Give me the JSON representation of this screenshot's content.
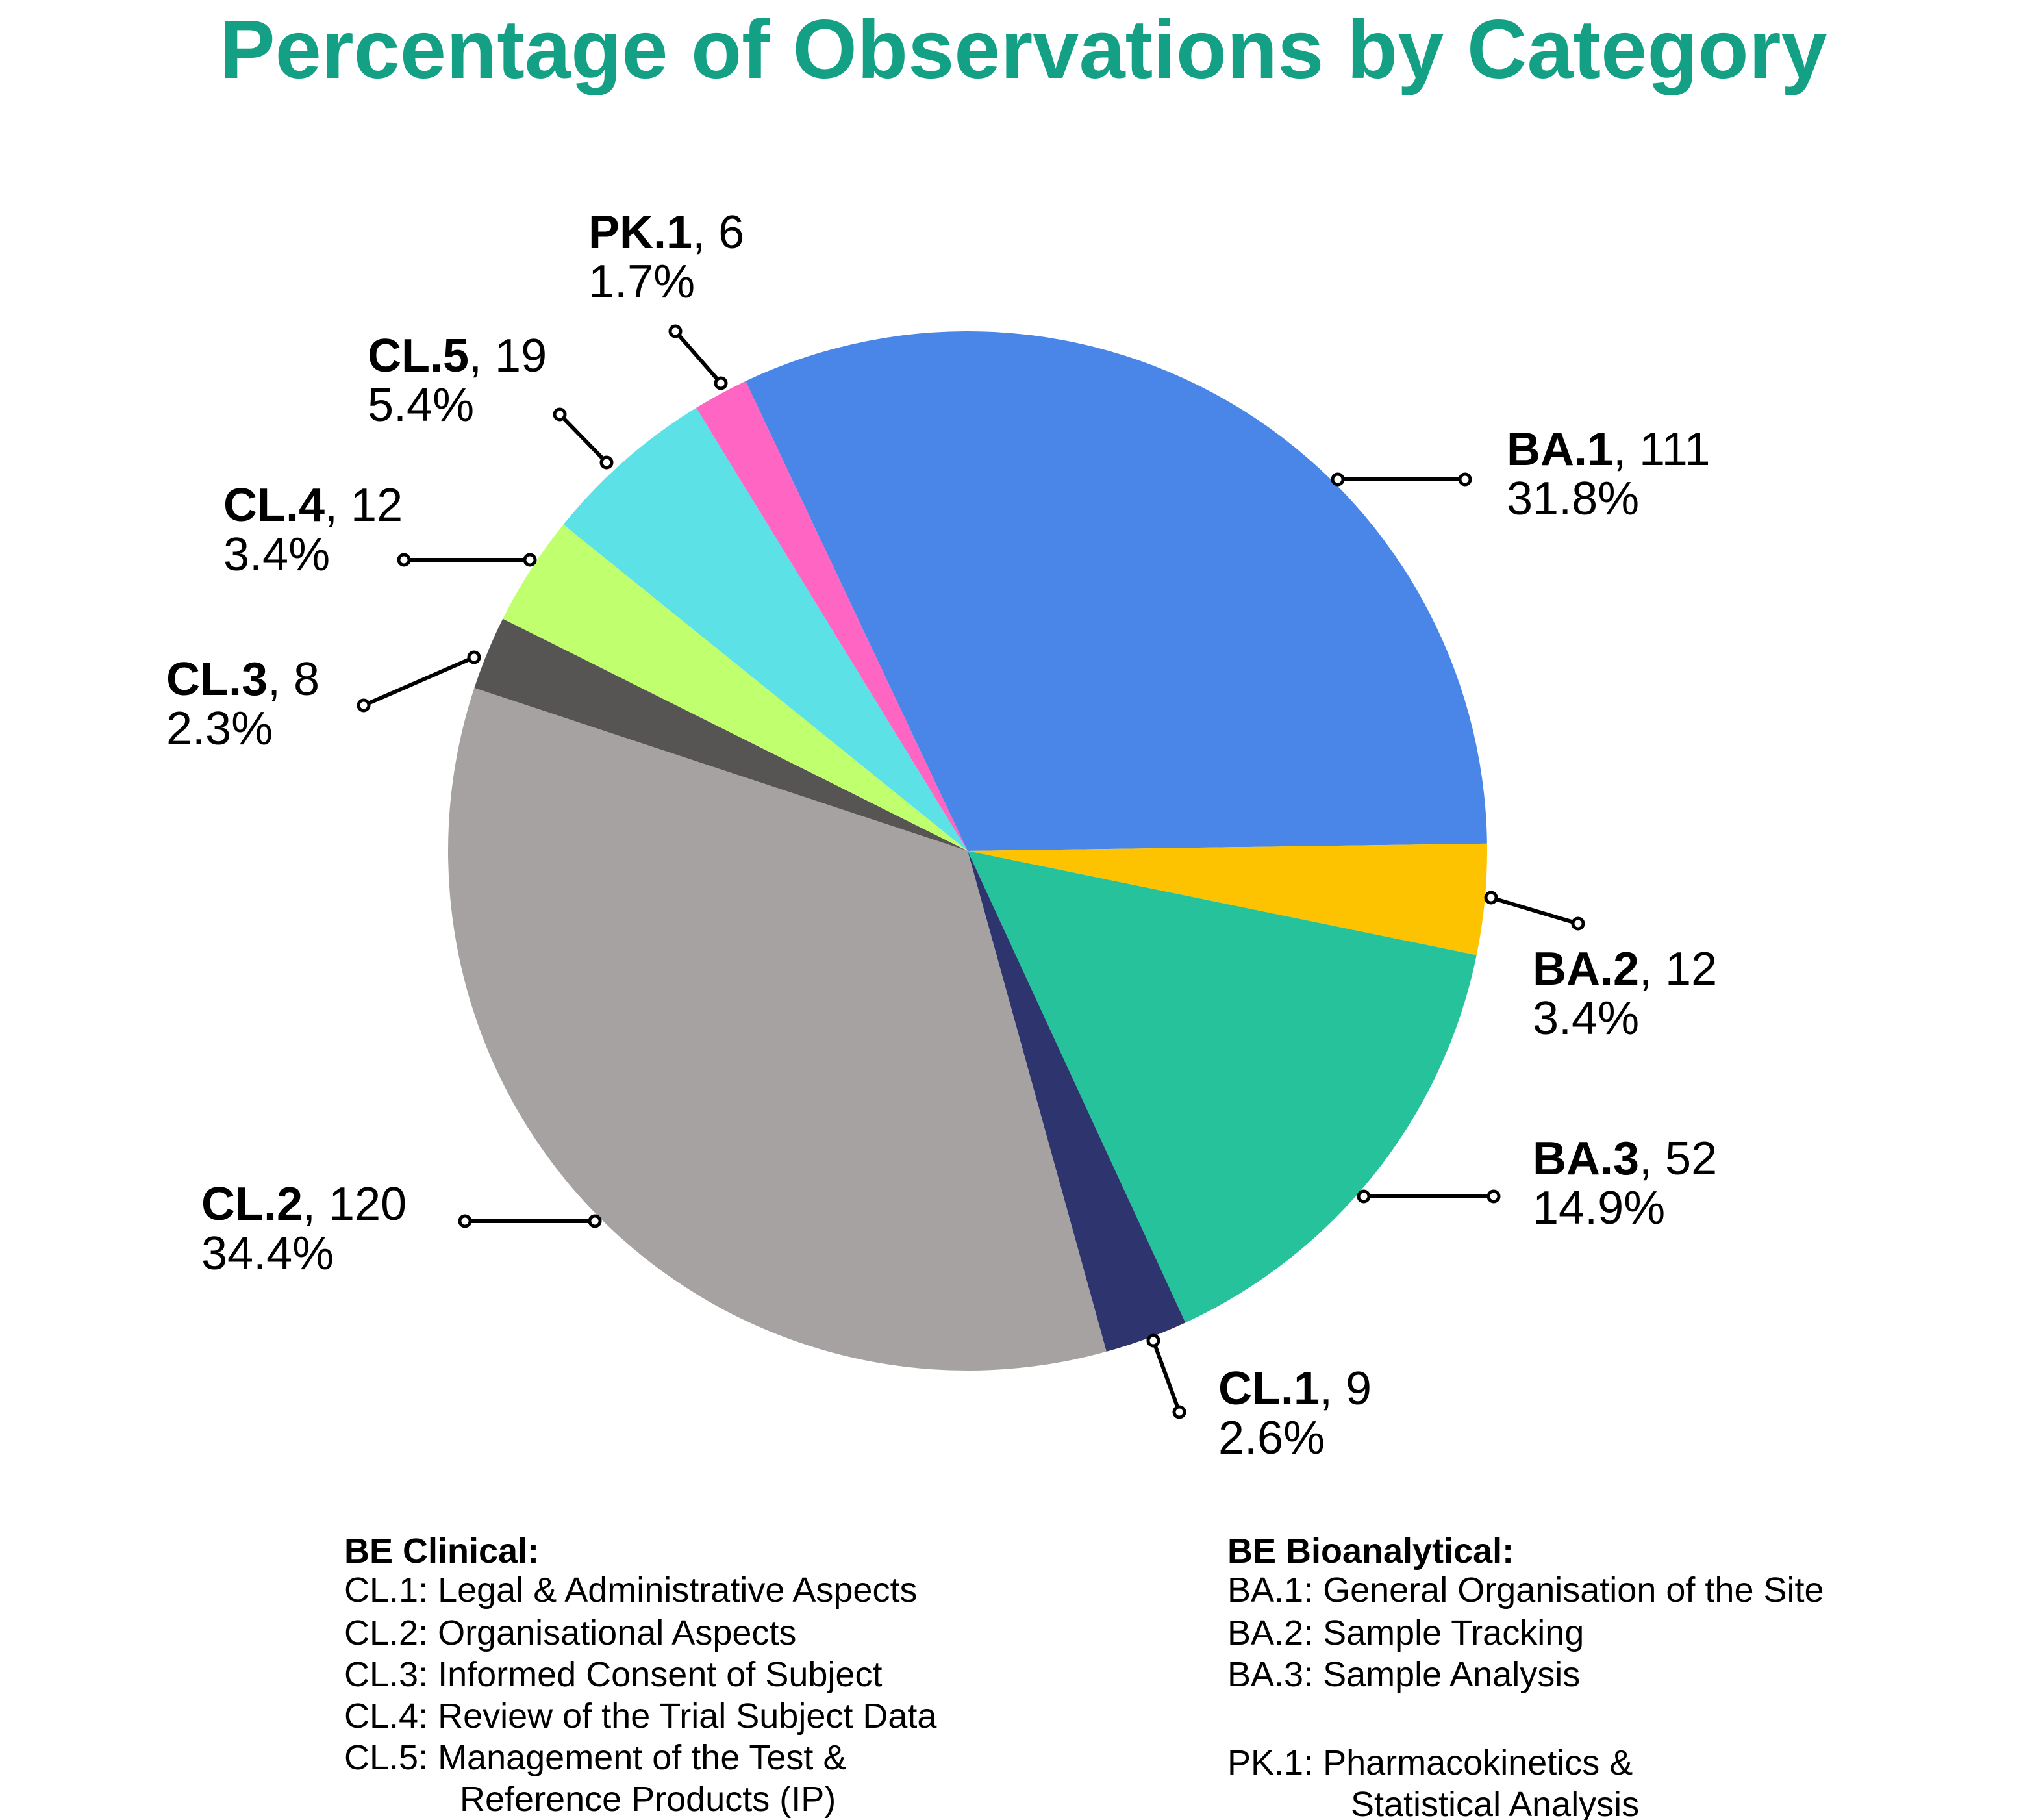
{
  "chart_data": {
    "type": "pie",
    "title": "Percentage of Observations by Category",
    "title_color": "#13a085",
    "start_angle_deg": 115.3,
    "direction": "clockwise",
    "slices": [
      {
        "label": "BA.1",
        "value": 111,
        "percent": "31.8%",
        "color": "#4a86e8"
      },
      {
        "label": "BA.2",
        "value": 12,
        "percent": "3.4%",
        "color": "#fdc300"
      },
      {
        "label": "BA.3",
        "value": 52,
        "percent": "14.9%",
        "color": "#26c29b"
      },
      {
        "label": "CL.1",
        "value": 9,
        "percent": "2.6%",
        "color": "#2e346e"
      },
      {
        "label": "CL.2",
        "value": 120,
        "percent": "34.4%",
        "color": "#a6a2a1"
      },
      {
        "label": "CL.3",
        "value": 8,
        "percent": "2.3%",
        "color": "#575553"
      },
      {
        "label": "CL.4",
        "value": 12,
        "percent": "3.4%",
        "color": "#c0ff6e"
      },
      {
        "label": "CL.5",
        "value": 19,
        "percent": "5.4%",
        "color": "#5ce1e6"
      },
      {
        "label": "PK.1",
        "value": 6,
        "percent": "1.7%",
        "color": "#ff66c4"
      }
    ],
    "legend": {
      "clinical": {
        "heading": "BE Clinical:",
        "lines": [
          "CL.1: Legal & Administrative Aspects",
          "CL.2: Organisational Aspects",
          "CL.3: Informed Consent of Subject",
          "CL.4: Review of the Trial Subject Data",
          "CL.5: Management of the Test &",
          "Reference Products (IP)"
        ]
      },
      "bioanalytical": {
        "heading": "BE Bioanalytical:",
        "lines": [
          "BA.1: General Organisation of the Site",
          "BA.2: Sample Tracking",
          "BA.3: Sample Analysis"
        ]
      },
      "pk": {
        "lines": [
          "PK.1: Pharmacokinetics &",
          "Statistical Analysis"
        ]
      }
    }
  }
}
